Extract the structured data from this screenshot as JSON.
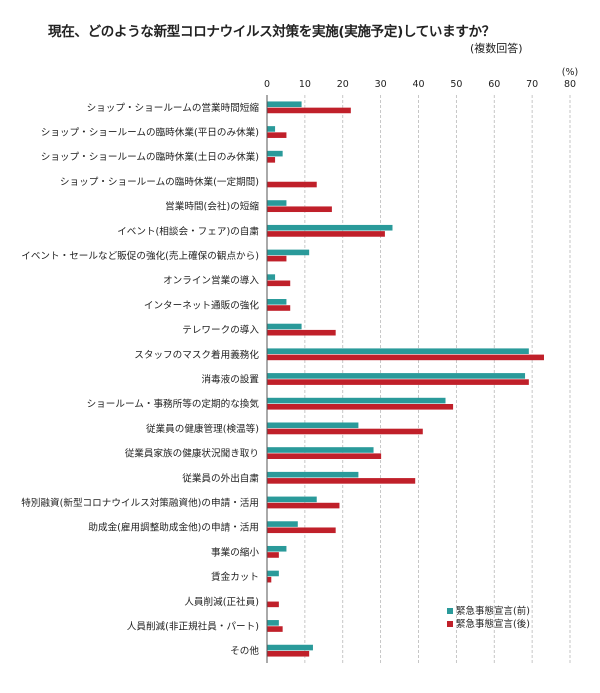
{
  "chart_data": {
    "type": "bar",
    "orientation": "horizontal",
    "title": "現在、どのような新型コロナウイルス対策を実施(実施予定)していますか？",
    "subtitle": "(複数回答)",
    "unit": "(%)",
    "xlim": [
      0,
      80
    ],
    "xticks": [
      "0",
      "10",
      "20",
      "30",
      "40",
      "50",
      "60",
      "70",
      "80"
    ],
    "grid": "vertical-dashed",
    "legend_position": "bottom-right",
    "categories": [
      "ショップ・ショールームの営業時間短縮",
      "ショップ・ショールームの臨時休業(平日のみ休業)",
      "ショップ・ショールームの臨時休業(土日のみ休業)",
      "ショップ・ショールームの臨時休業(一定期間)",
      "営業時間(会社)の短縮",
      "イベント(相談会・フェア)の自粛",
      "イベント・セールなど販促の強化(売上確保の観点から)",
      "オンライン営業の導入",
      "インターネット通販の強化",
      "テレワークの導入",
      "スタッフのマスク着用義務化",
      "消毒液の設置",
      "ショールーム・事務所等の定期的な換気",
      "従業員の健康管理(検温等)",
      "従業員家族の健康状況聞き取り",
      "従業員の外出自粛",
      "特別融資(新型コロナウイルス対策融資他)の申請・活用",
      "助成金(雇用調整助成金他)の申請・活用",
      "事業の縮小",
      "賃金カット",
      "人員削減(正社員)",
      "人員削減(非正規社員・パート)",
      "その他"
    ],
    "series": [
      {
        "name": "緊急事態宣言(前)",
        "color": "#2a9a9a",
        "values": [
          9,
          2,
          4,
          0,
          5,
          33,
          11,
          2,
          5,
          9,
          69,
          68,
          47,
          24,
          28,
          24,
          13,
          8,
          5,
          3,
          0,
          3,
          12
        ]
      },
      {
        "name": "緊急事態宣言(後)",
        "color": "#c0202a",
        "values": [
          22,
          5,
          2,
          13,
          17,
          31,
          5,
          6,
          6,
          18,
          73,
          69,
          49,
          41,
          30,
          39,
          19,
          18,
          3,
          1,
          3,
          4,
          11
        ]
      }
    ]
  }
}
